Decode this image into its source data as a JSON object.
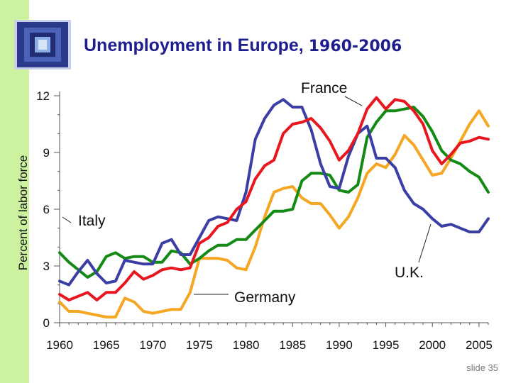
{
  "slide": {
    "title_main": "Unemployment in Europe, ",
    "title_years": "1960-2006",
    "footer": "slide 35",
    "logo_icon": "framed-square-logo-icon"
  },
  "chart_data": {
    "type": "line",
    "title": "Unemployment in Europe, 1960-2006",
    "xlabel": "",
    "ylabel": "Percent of labor force",
    "xlim": [
      1960,
      2006
    ],
    "ylim": [
      0,
      12
    ],
    "xticks": [
      1960,
      1965,
      1970,
      1975,
      1980,
      1985,
      1990,
      1995,
      2000,
      2005
    ],
    "yticks": [
      0,
      3,
      6,
      9,
      12
    ],
    "grid": false,
    "x": [
      1960,
      1961,
      1962,
      1963,
      1964,
      1965,
      1966,
      1967,
      1968,
      1969,
      1970,
      1971,
      1972,
      1973,
      1974,
      1975,
      1976,
      1977,
      1978,
      1979,
      1980,
      1981,
      1982,
      1983,
      1984,
      1985,
      1986,
      1987,
      1988,
      1989,
      1990,
      1991,
      1992,
      1993,
      1994,
      1995,
      1996,
      1997,
      1998,
      1999,
      2000,
      2001,
      2002,
      2003,
      2004,
      2005,
      2006
    ],
    "series": [
      {
        "name": "France",
        "color": "#e8161e",
        "values": [
          1.5,
          1.2,
          1.4,
          1.6,
          1.2,
          1.6,
          1.6,
          2.1,
          2.7,
          2.3,
          2.5,
          2.8,
          2.9,
          2.8,
          2.9,
          4.2,
          4.5,
          5.1,
          5.3,
          6.0,
          6.4,
          7.6,
          8.3,
          8.6,
          10.0,
          10.5,
          10.6,
          10.8,
          10.3,
          9.6,
          8.6,
          9.1,
          10.0,
          11.3,
          11.9,
          11.3,
          11.8,
          11.7,
          11.2,
          10.5,
          9.1,
          8.4,
          8.9,
          9.5,
          9.6,
          9.8,
          9.7
        ]
      },
      {
        "name": "U.K.",
        "color": "#3b3fa5",
        "values": [
          2.2,
          2.0,
          2.7,
          3.3,
          2.6,
          2.1,
          2.2,
          3.3,
          3.2,
          3.1,
          3.1,
          4.2,
          4.4,
          3.6,
          3.6,
          4.5,
          5.4,
          5.6,
          5.5,
          5.4,
          6.9,
          9.7,
          10.8,
          11.5,
          11.8,
          11.4,
          11.4,
          10.2,
          8.4,
          7.2,
          7.1,
          8.8,
          10.0,
          10.4,
          8.7,
          8.7,
          8.2,
          7.0,
          6.3,
          6.0,
          5.5,
          5.1,
          5.2,
          5.0,
          4.8,
          4.8,
          5.5
        ]
      },
      {
        "name": "Germany",
        "color": "#f5a623",
        "values": [
          1.1,
          0.6,
          0.6,
          0.5,
          0.4,
          0.3,
          0.3,
          1.3,
          1.1,
          0.6,
          0.5,
          0.6,
          0.7,
          0.7,
          1.6,
          3.4,
          3.4,
          3.4,
          3.3,
          2.9,
          2.8,
          4.0,
          5.6,
          6.9,
          7.1,
          7.2,
          6.6,
          6.3,
          6.3,
          5.7,
          5.0,
          5.6,
          6.6,
          7.9,
          8.4,
          8.2,
          8.9,
          9.9,
          9.4,
          8.6,
          7.8,
          7.9,
          8.7,
          9.6,
          10.5,
          11.2,
          10.4
        ]
      },
      {
        "name": "Italy",
        "color": "#138a13",
        "values": [
          3.7,
          3.2,
          2.8,
          2.4,
          2.7,
          3.5,
          3.7,
          3.4,
          3.5,
          3.5,
          3.2,
          3.2,
          3.8,
          3.7,
          3.1,
          3.4,
          3.8,
          4.1,
          4.1,
          4.4,
          4.4,
          4.9,
          5.4,
          5.9,
          5.9,
          6.0,
          7.5,
          7.9,
          7.9,
          7.8,
          7.0,
          6.9,
          7.3,
          9.8,
          10.6,
          11.2,
          11.2,
          11.3,
          11.4,
          10.9,
          10.1,
          9.1,
          8.6,
          8.4,
          8.0,
          7.7,
          6.9
        ]
      }
    ],
    "annotations": [
      "France",
      "Italy",
      "U.K.",
      "Germany"
    ],
    "legend": "inline labels"
  }
}
